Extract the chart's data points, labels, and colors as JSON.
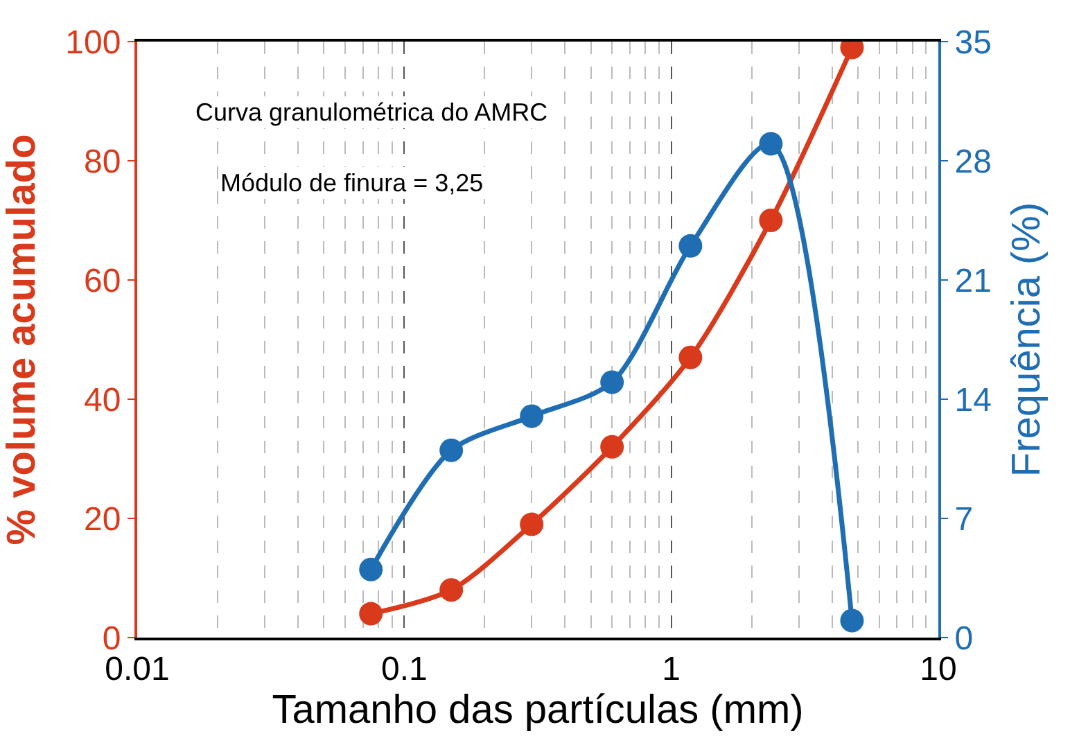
{
  "chart_data": {
    "type": "line",
    "xlabel": "Tamanho das partículas (mm)",
    "ylabel": "% volume acumulado",
    "y2label": "Frequência (%)",
    "annotations": [
      "Curva granulométrica do AMRC",
      "Módulo de finura = 3,25"
    ],
    "x": [
      0.075,
      0.15,
      0.3,
      0.6,
      1.18,
      2.36,
      4.75
    ],
    "series": [
      {
        "color": "#d93a1b",
        "values": [
          4,
          8,
          19,
          32,
          47,
          70,
          99
        ]
      },
      {
        "color": "#1f6eb4",
        "axis": "y2",
        "values": [
          4,
          11,
          13,
          15,
          23,
          29,
          1
        ]
      }
    ],
    "log": "x",
    "xlim": [
      0.01,
      10
    ],
    "xticks": [
      0.01,
      0.1,
      1,
      10
    ],
    "ylim": [
      0,
      100
    ],
    "yticks": [
      0,
      20,
      40,
      60,
      80,
      100
    ],
    "y2lim": [
      0,
      35
    ],
    "y2ticks": [
      0,
      7,
      14,
      21,
      28,
      35
    ],
    "grid": "x",
    "legend": false,
    "marker": "circle",
    "line_style": "solid"
  }
}
